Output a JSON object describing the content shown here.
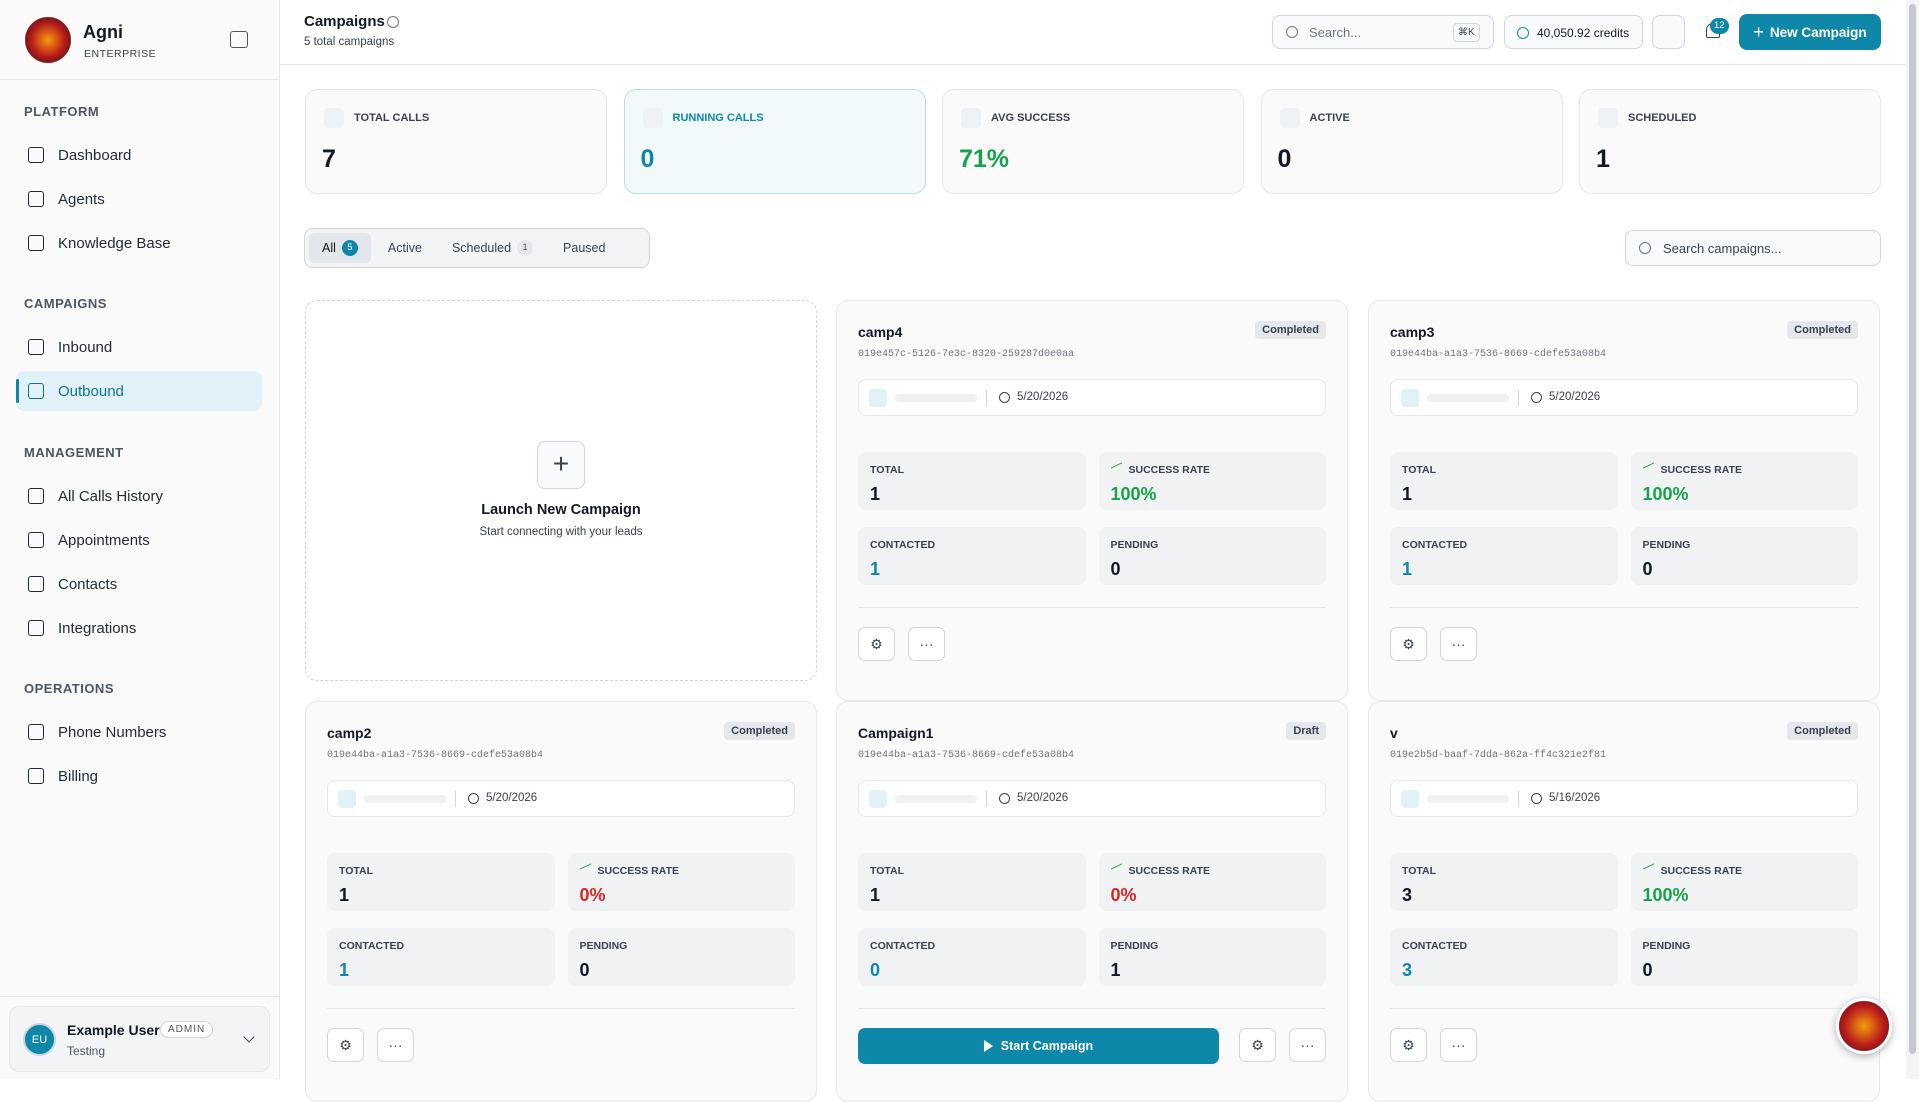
{
  "sidebar": {
    "brand": "Agni",
    "plan": "ENTERPRISE",
    "sections": [
      {
        "title": "PLATFORM",
        "items": [
          "Dashboard",
          "Agents",
          "Knowledge Base"
        ]
      },
      {
        "title": "CAMPAIGNS",
        "items": [
          "Inbound",
          "Outbound"
        ]
      },
      {
        "title": "MANAGEMENT",
        "items": [
          "All Calls History",
          "Appointments",
          "Contacts",
          "Integrations"
        ]
      },
      {
        "title": "OPERATIONS",
        "items": [
          "Phone Numbers",
          "Billing"
        ]
      }
    ],
    "active_item": "Outbound",
    "user": {
      "initials": "EU",
      "name": "Example User",
      "role": "ADMIN",
      "org": "Testing"
    }
  },
  "header": {
    "title": "Campaigns",
    "subtitle": "5 total campaigns",
    "search": "Search...",
    "shortcut": "⌘K",
    "credits": "40,050.92 credits",
    "notifications": "12",
    "new_button": "New Campaign"
  },
  "stats": [
    {
      "label": "TOTAL CALLS",
      "value": "7"
    },
    {
      "label": "RUNNING CALLS",
      "value": "0",
      "color": "#0e87a8"
    },
    {
      "label": "AVG SUCCESS",
      "value": "71%",
      "color": "#16a34a"
    },
    {
      "label": "ACTIVE",
      "value": "0"
    },
    {
      "label": "SCHEDULED",
      "value": "1"
    }
  ],
  "tabs": [
    {
      "label": "All",
      "count": "5"
    },
    {
      "label": "Active"
    },
    {
      "label": "Scheduled",
      "count": "1"
    },
    {
      "label": "Paused"
    }
  ],
  "search_placeholder": "Search campaigns...",
  "launch": {
    "title": "Launch New Campaign",
    "subtitle": "Start connecting with your leads"
  },
  "metric_labels": {
    "total": "TOTAL",
    "success": "SUCCESS RATE",
    "contacted": "CONTACTED",
    "pending": "PENDING"
  },
  "campaigns": [
    {
      "name": "camp4",
      "status": "Completed",
      "id": "019e457c-5126-7e3c-8320-259287d0e0aa",
      "date": "5/20/2026",
      "total": "1",
      "success_rate": "100%",
      "contacted": "1",
      "pending": "0"
    },
    {
      "name": "camp3",
      "status": "Completed",
      "id": "019e44ba-a1a3-7536-8669-cdefe53a08b4",
      "date": "5/20/2026",
      "total": "1",
      "success_rate": "100%",
      "contacted": "1",
      "pending": "0"
    },
    {
      "name": "camp2",
      "status": "Completed",
      "id": "019e44ba-a1a3-7536-8669-cdefe53a08b4",
      "date": "5/20/2026",
      "total": "1",
      "success_rate": "0%",
      "contacted": "1",
      "pending": "0"
    },
    {
      "name": "Campaign1",
      "status": "Draft",
      "id": "019e44ba-a1a3-7536-8669-cdefe53a08b4",
      "date": "5/20/2026",
      "total": "1",
      "success_rate": "0%",
      "contacted": "0",
      "pending": "1",
      "start_button": "Start Campaign"
    },
    {
      "name": "v",
      "status": "Completed",
      "id": "019e2b5d-baaf-7dda-862a-ff4c321e2f81",
      "date": "5/16/2026",
      "total": "3",
      "success_rate": "100%",
      "contacted": "3",
      "pending": "0"
    }
  ]
}
